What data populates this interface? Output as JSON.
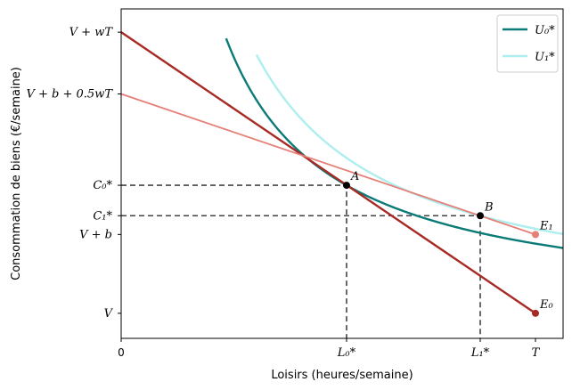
{
  "chart_data": {
    "type": "line",
    "xlabel": "Loisirs (heures/semaine)",
    "ylabel": "Consommation de biens (€/semaine)",
    "xlim": [
      0,
      80
    ],
    "ylim": [
      -14,
      170
    ],
    "x_ticks": [
      {
        "value": 0,
        "label": "0"
      },
      {
        "value": 40.8,
        "label": "L₀*"
      },
      {
        "value": 65,
        "label": "L₁*"
      },
      {
        "value": 75,
        "label": "T"
      }
    ],
    "y_ticks": [
      {
        "value": 0,
        "label": "V"
      },
      {
        "value": 44,
        "label": "V + b"
      },
      {
        "value": 54.5,
        "label": "C₁*"
      },
      {
        "value": 71.5,
        "label": "C₀*"
      },
      {
        "value": 122.5,
        "label": "V + b + 0.5wT"
      },
      {
        "value": 157,
        "label": "V + wT"
      }
    ],
    "series": [
      {
        "name": "U₀*",
        "kind": "curve",
        "color": "#0b7b78",
        "k": 2917,
        "x_from": 19,
        "x_to": 80
      },
      {
        "name": "U₁*",
        "kind": "curve",
        "color": "#aeeeee",
        "k": 3540,
        "x_from": 24.5,
        "x_to": 80
      },
      {
        "kind": "line",
        "color": "#a72a25",
        "points": [
          [
            0,
            157
          ],
          [
            75,
            0
          ]
        ]
      },
      {
        "kind": "line",
        "color": "#e57f78",
        "points": [
          [
            0,
            122.5
          ],
          [
            75,
            44
          ]
        ]
      }
    ],
    "reference_lines": [
      {
        "points": [
          [
            0,
            71.5
          ],
          [
            40.8,
            71.5
          ],
          [
            40.8,
            -14
          ]
        ]
      },
      {
        "points": [
          [
            0,
            54.5
          ],
          [
            65,
            54.5
          ],
          [
            65,
            -14
          ]
        ]
      }
    ],
    "points": [
      {
        "label": "A",
        "x": 40.8,
        "y": 71.5,
        "color": "#000000"
      },
      {
        "label": "B",
        "x": 65,
        "y": 54.5,
        "color": "#000000"
      },
      {
        "label": "E₁",
        "x": 75,
        "y": 44,
        "color": "#e57f78"
      },
      {
        "label": "E₀",
        "x": 75,
        "y": 0,
        "color": "#a72a25"
      }
    ],
    "legend": {
      "placement": "top-right",
      "entries": [
        "U₀*",
        "U₁*"
      ]
    },
    "grid": false
  }
}
